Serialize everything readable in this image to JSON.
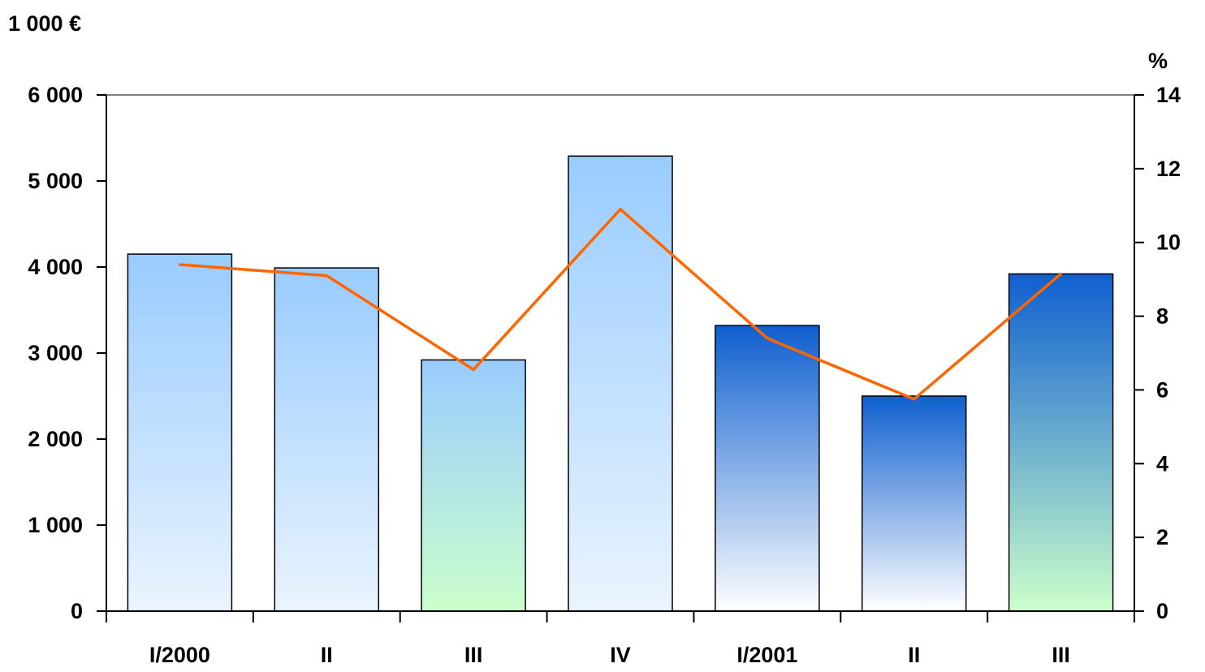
{
  "chart_data": {
    "type": "bar",
    "categories": [
      "I/2000",
      "II",
      "III",
      "IV",
      "I/2001",
      "II",
      "III"
    ],
    "series": [
      {
        "type": "bar",
        "axis": "left",
        "values": [
          4150,
          3990,
          2920,
          5290,
          3320,
          2500,
          3920
        ],
        "fill_styles": [
          "light-blue",
          "light-blue",
          "blue-to-green",
          "light-blue",
          "blue-to-white",
          "blue-to-white",
          "blue-to-green"
        ]
      },
      {
        "type": "line",
        "axis": "right",
        "values": [
          9.4,
          9.1,
          6.55,
          10.9,
          7.4,
          5.75,
          9.15
        ],
        "color": "#FF6600"
      }
    ],
    "y_left": {
      "unit": "1 000 €",
      "range": [
        0,
        6000
      ],
      "ticks": [
        "0",
        "1 000",
        "2 000",
        "3 000",
        "4 000",
        "5 000",
        "6 000"
      ]
    },
    "y_right": {
      "unit": "%",
      "range": [
        0,
        14
      ],
      "ticks": [
        "0",
        "2",
        "4",
        "6",
        "8",
        "10",
        "12",
        "14"
      ]
    },
    "grid": false,
    "legend": "none",
    "colors": {
      "light_blue_top": "#99CCFF",
      "light_blue_bottom": "#EAF4FF",
      "green_bottom": "#CCFFCC",
      "dark_blue_top": "#0F5FCF",
      "white_bottom": "#FFFFFF",
      "line": "#FF6600"
    }
  }
}
